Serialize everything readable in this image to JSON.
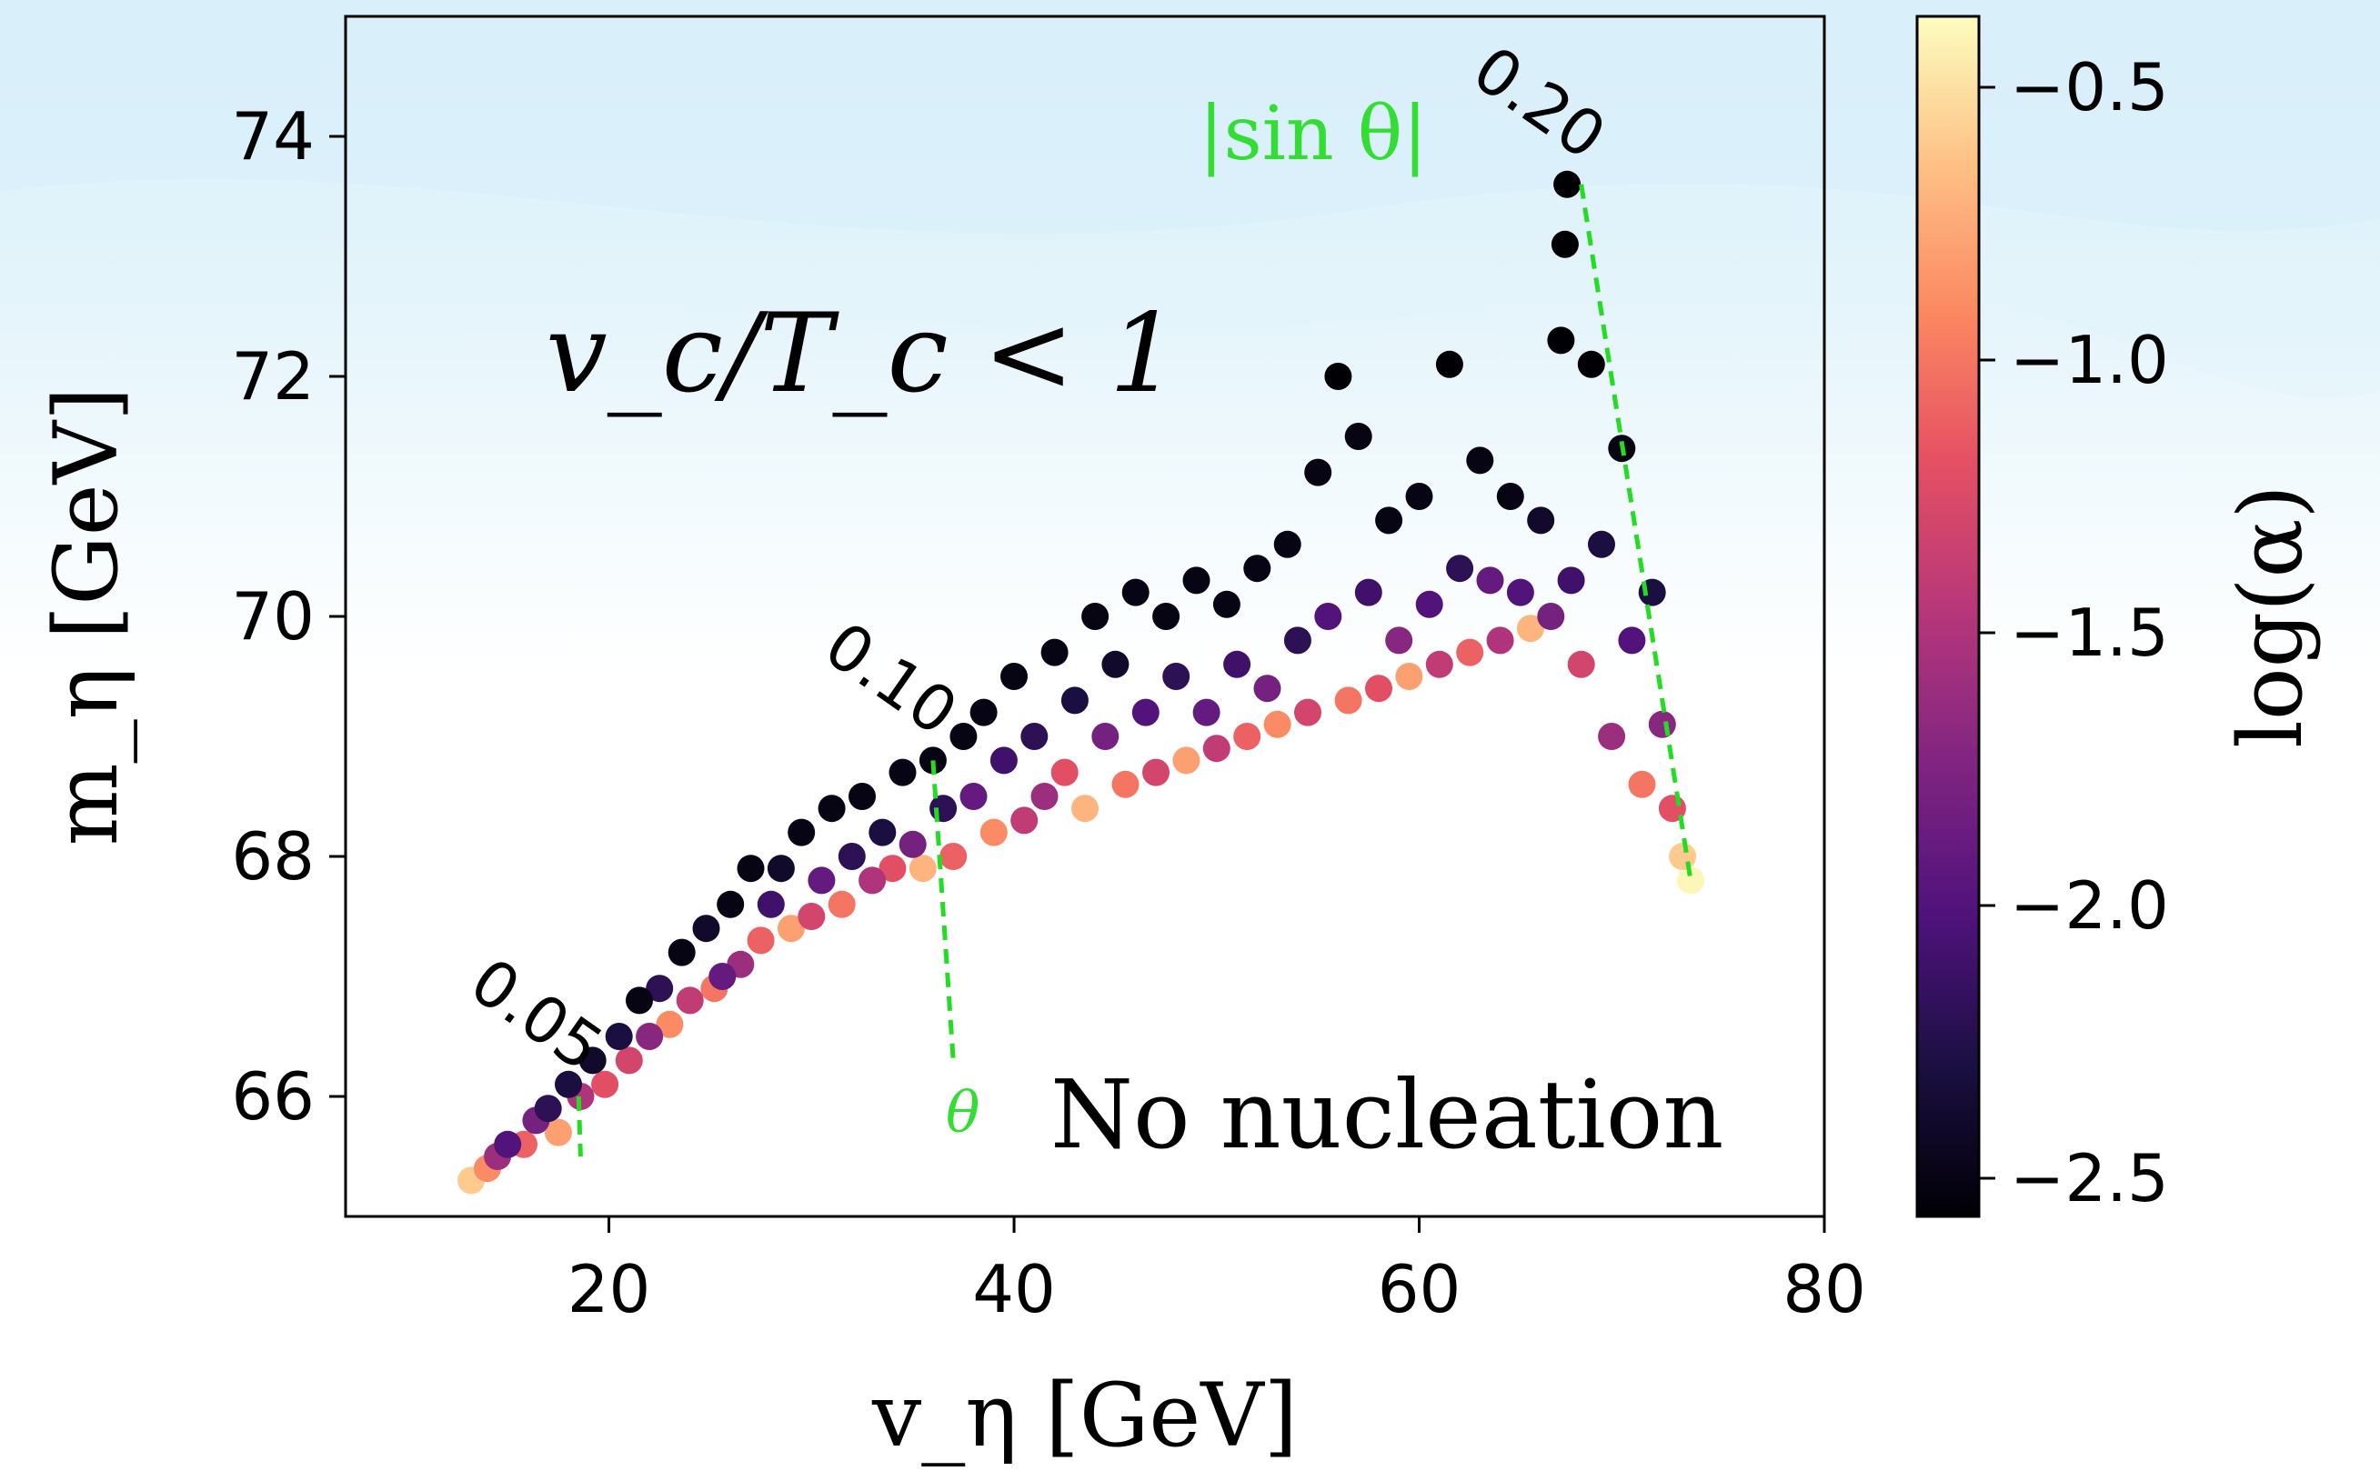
{
  "chart_data": {
    "type": "scatter",
    "title": "",
    "xlabel": "v_η [GeV]",
    "ylabel": "m_η [GeV]",
    "xlim": [
      7,
      80
    ],
    "ylim": [
      65,
      75
    ],
    "xticks": [
      "20",
      "40",
      "60",
      "80"
    ],
    "xtick_values": [
      20,
      40,
      60,
      80
    ],
    "yticks": [
      "66",
      "68",
      "70",
      "72",
      "74"
    ],
    "ytick_values": [
      66,
      68,
      70,
      72,
      74
    ],
    "colorbar": {
      "label": "log(α)",
      "range": [
        -2.57,
        -0.37
      ],
      "ticks": [
        "−0.5",
        "−1.0",
        "−1.5",
        "−2.0",
        "−2.5"
      ],
      "tick_values": [
        -0.5,
        -1.0,
        -1.5,
        -2.0,
        -2.5
      ],
      "colormap": "magma"
    },
    "contour_label": "|sin θ|",
    "contours": [
      {
        "label": "0.05",
        "points": [
          [
            18.5,
            66.0
          ],
          [
            18.6,
            65.5
          ]
        ]
      },
      {
        "label": "0.10",
        "points": [
          [
            36.0,
            68.8
          ],
          [
            37.0,
            66.3
          ]
        ]
      },
      {
        "label": "0.20",
        "points": [
          [
            68.0,
            73.6
          ],
          [
            73.4,
            67.8
          ]
        ]
      }
    ],
    "annotations": {
      "first_order": "v_c/T_c < 1",
      "no_nucleation": "No nucleation",
      "theta_fragment": "θ"
    },
    "series": [
      {
        "type": "scatter",
        "points": [
          [
            13.2,
            65.3,
            -0.6
          ],
          [
            14.0,
            65.4,
            -0.9
          ],
          [
            14.5,
            65.5,
            -1.6
          ],
          [
            15.0,
            65.6,
            -2.0
          ],
          [
            15.8,
            65.6,
            -1.1
          ],
          [
            16.4,
            65.8,
            -1.8
          ],
          [
            17.0,
            65.9,
            -2.2
          ],
          [
            17.5,
            65.7,
            -0.8
          ],
          [
            18.0,
            66.1,
            -2.3
          ],
          [
            18.6,
            66.0,
            -1.5
          ],
          [
            19.2,
            66.3,
            -2.4
          ],
          [
            19.8,
            66.1,
            -1.2
          ],
          [
            20.5,
            66.5,
            -2.3
          ],
          [
            21.0,
            66.3,
            -1.3
          ],
          [
            21.5,
            66.8,
            -2.5
          ],
          [
            22.0,
            66.5,
            -1.7
          ],
          [
            22.5,
            66.9,
            -2.2
          ],
          [
            23.0,
            66.6,
            -0.9
          ],
          [
            23.6,
            67.2,
            -2.5
          ],
          [
            24.0,
            66.8,
            -1.4
          ],
          [
            24.8,
            67.4,
            -2.4
          ],
          [
            25.2,
            66.9,
            -1.0
          ],
          [
            25.6,
            67.0,
            -1.9
          ],
          [
            26.0,
            67.6,
            -2.5
          ],
          [
            26.5,
            67.1,
            -1.6
          ],
          [
            27.0,
            67.9,
            -2.5
          ],
          [
            27.5,
            67.3,
            -1.1
          ],
          [
            28.0,
            67.6,
            -2.1
          ],
          [
            28.5,
            67.9,
            -2.4
          ],
          [
            29.0,
            67.4,
            -0.8
          ],
          [
            29.5,
            68.2,
            -2.5
          ],
          [
            30.0,
            67.5,
            -1.3
          ],
          [
            30.5,
            67.8,
            -1.9
          ],
          [
            31.0,
            68.4,
            -2.5
          ],
          [
            31.5,
            67.6,
            -1.0
          ],
          [
            32.0,
            68.0,
            -2.2
          ],
          [
            32.5,
            68.5,
            -2.5
          ],
          [
            33.0,
            67.8,
            -1.5
          ],
          [
            33.5,
            68.2,
            -2.3
          ],
          [
            34.0,
            67.9,
            -1.2
          ],
          [
            34.5,
            68.7,
            -2.5
          ],
          [
            35.0,
            68.1,
            -1.8
          ],
          [
            35.5,
            67.9,
            -0.7
          ],
          [
            36.0,
            68.8,
            -2.5
          ],
          [
            36.5,
            68.4,
            -2.2
          ],
          [
            37.0,
            68.0,
            -1.1
          ],
          [
            37.5,
            69.0,
            -2.5
          ],
          [
            38.0,
            68.5,
            -1.9
          ],
          [
            38.5,
            69.2,
            -2.5
          ],
          [
            39.0,
            68.2,
            -0.9
          ],
          [
            39.5,
            68.8,
            -2.1
          ],
          [
            40.0,
            69.5,
            -2.5
          ],
          [
            40.5,
            68.3,
            -1.4
          ],
          [
            41.0,
            69.0,
            -2.2
          ],
          [
            41.5,
            68.5,
            -1.6
          ],
          [
            42.0,
            69.7,
            -2.5
          ],
          [
            42.5,
            68.7,
            -1.2
          ],
          [
            43.0,
            69.3,
            -2.3
          ],
          [
            43.5,
            68.4,
            -0.7
          ],
          [
            44.0,
            70.0,
            -2.5
          ],
          [
            44.5,
            69.0,
            -1.8
          ],
          [
            45.0,
            69.6,
            -2.4
          ],
          [
            45.5,
            68.6,
            -1.0
          ],
          [
            46.0,
            70.2,
            -2.5
          ],
          [
            46.5,
            69.2,
            -2.0
          ],
          [
            47.0,
            68.7,
            -1.3
          ],
          [
            47.5,
            70.0,
            -2.5
          ],
          [
            48.0,
            69.5,
            -2.2
          ],
          [
            48.5,
            68.8,
            -0.8
          ],
          [
            49.0,
            70.3,
            -2.5
          ],
          [
            49.5,
            69.2,
            -1.9
          ],
          [
            50.0,
            68.9,
            -1.4
          ],
          [
            50.5,
            70.1,
            -2.5
          ],
          [
            51.0,
            69.6,
            -2.1
          ],
          [
            51.5,
            69.0,
            -1.1
          ],
          [
            52.0,
            70.4,
            -2.5
          ],
          [
            52.5,
            69.4,
            -1.8
          ],
          [
            53.0,
            69.1,
            -0.9
          ],
          [
            53.5,
            70.6,
            -2.5
          ],
          [
            54.0,
            69.8,
            -2.2
          ],
          [
            54.5,
            69.2,
            -1.3
          ],
          [
            55.0,
            71.2,
            -2.5
          ],
          [
            55.5,
            70.0,
            -2.0
          ],
          [
            56.0,
            72.0,
            -2.6
          ],
          [
            56.5,
            69.3,
            -1.0
          ],
          [
            57.0,
            71.5,
            -2.5
          ],
          [
            57.5,
            70.2,
            -2.1
          ],
          [
            58.0,
            69.4,
            -1.2
          ],
          [
            58.5,
            70.8,
            -2.5
          ],
          [
            59.0,
            69.8,
            -1.7
          ],
          [
            59.5,
            69.5,
            -0.8
          ],
          [
            60.0,
            71.0,
            -2.5
          ],
          [
            60.5,
            70.1,
            -2.0
          ],
          [
            61.0,
            69.6,
            -1.4
          ],
          [
            61.5,
            72.1,
            -2.6
          ],
          [
            62.0,
            70.4,
            -2.2
          ],
          [
            62.5,
            69.7,
            -1.1
          ],
          [
            63.0,
            71.3,
            -2.5
          ],
          [
            63.5,
            70.3,
            -1.9
          ],
          [
            64.0,
            69.8,
            -1.5
          ],
          [
            64.5,
            71.0,
            -2.5
          ],
          [
            65.0,
            70.2,
            -2.0
          ],
          [
            65.5,
            69.9,
            -0.7
          ],
          [
            66.0,
            70.8,
            -2.4
          ],
          [
            66.5,
            70.0,
            -1.8
          ],
          [
            67.0,
            72.3,
            -2.6
          ],
          [
            67.2,
            73.1,
            -2.6
          ],
          [
            67.3,
            73.6,
            -2.6
          ],
          [
            67.5,
            70.3,
            -2.1
          ],
          [
            68.0,
            69.6,
            -1.3
          ],
          [
            68.5,
            72.1,
            -2.6
          ],
          [
            69.0,
            70.6,
            -2.3
          ],
          [
            69.5,
            69.0,
            -1.6
          ],
          [
            70.0,
            71.4,
            -2.5
          ],
          [
            70.5,
            69.8,
            -2.0
          ],
          [
            71.0,
            68.6,
            -1.0
          ],
          [
            71.5,
            70.2,
            -2.3
          ],
          [
            72.0,
            69.1,
            -1.7
          ],
          [
            72.5,
            68.4,
            -1.2
          ],
          [
            73.0,
            68.0,
            -0.6
          ],
          [
            73.4,
            67.8,
            -0.4
          ]
        ]
      }
    ]
  }
}
